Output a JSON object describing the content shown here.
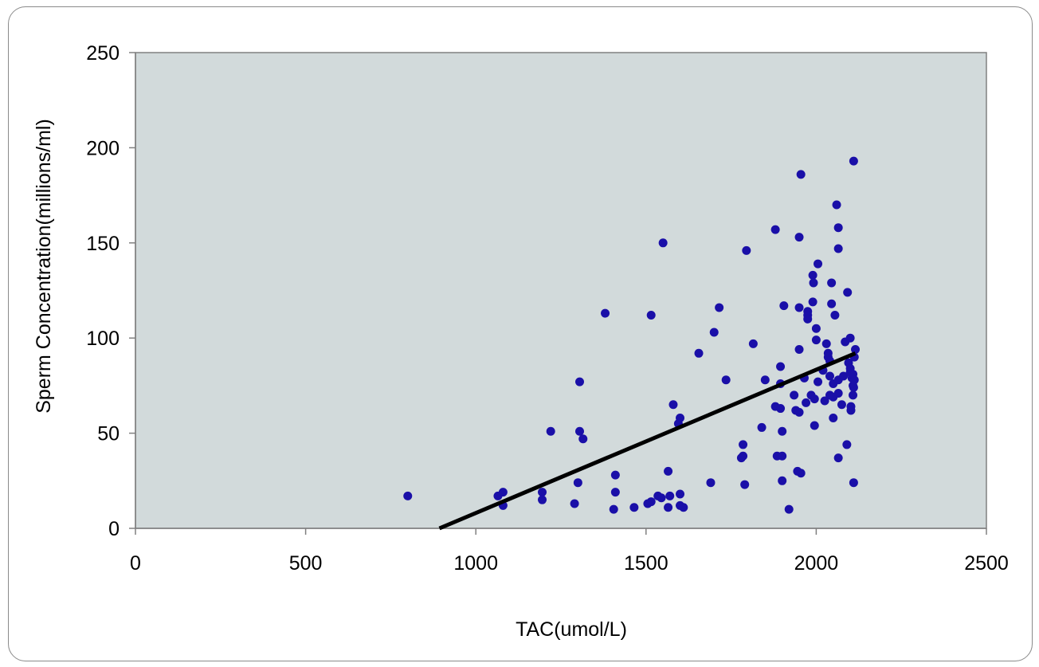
{
  "chart_data": {
    "type": "scatter",
    "title": "",
    "xlabel": "TAC(umol/L)",
    "ylabel": "Sperm Concentration(millions/ml)",
    "xlim": [
      0,
      2500
    ],
    "ylim": [
      0,
      250
    ],
    "x_ticks": [
      "0",
      "500",
      "1000",
      "1500",
      "2000",
      "2500"
    ],
    "y_ticks": [
      "0",
      "50",
      "100",
      "150",
      "200",
      "250"
    ],
    "x_tick_values": [
      0,
      500,
      1000,
      1500,
      2000,
      2500
    ],
    "y_tick_values": [
      0,
      50,
      100,
      150,
      200,
      250
    ],
    "grid": false,
    "plot_background": "#d2dadb",
    "point_color": "#1a0fa8",
    "trendline_color": "#000000",
    "points": [
      [
        800,
        17
      ],
      [
        1065,
        17
      ],
      [
        1080,
        19
      ],
      [
        1080,
        12
      ],
      [
        1195,
        19
      ],
      [
        1195,
        15
      ],
      [
        1220,
        51
      ],
      [
        1290,
        13
      ],
      [
        1300,
        24
      ],
      [
        1305,
        77
      ],
      [
        1305,
        51
      ],
      [
        1315,
        47
      ],
      [
        1380,
        113
      ],
      [
        1405,
        10
      ],
      [
        1410,
        28
      ],
      [
        1410,
        19
      ],
      [
        1465,
        11
      ],
      [
        1505,
        13
      ],
      [
        1515,
        14
      ],
      [
        1515,
        112
      ],
      [
        1535,
        17
      ],
      [
        1545,
        16
      ],
      [
        1550,
        150
      ],
      [
        1565,
        30
      ],
      [
        1565,
        11
      ],
      [
        1570,
        17
      ],
      [
        1580,
        65
      ],
      [
        1595,
        55
      ],
      [
        1600,
        58
      ],
      [
        1600,
        18
      ],
      [
        1600,
        12
      ],
      [
        1610,
        11
      ],
      [
        1655,
        92
      ],
      [
        1690,
        24
      ],
      [
        1700,
        103
      ],
      [
        1715,
        116
      ],
      [
        1735,
        78
      ],
      [
        1780,
        37
      ],
      [
        1785,
        38
      ],
      [
        1785,
        44
      ],
      [
        1790,
        23
      ],
      [
        1795,
        146
      ],
      [
        1815,
        97
      ],
      [
        1840,
        53
      ],
      [
        1850,
        78
      ],
      [
        1880,
        157
      ],
      [
        1880,
        64
      ],
      [
        1885,
        38
      ],
      [
        1895,
        85
      ],
      [
        1895,
        76
      ],
      [
        1895,
        63
      ],
      [
        1900,
        51
      ],
      [
        1900,
        38
      ],
      [
        1900,
        25
      ],
      [
        1905,
        117
      ],
      [
        1920,
        10
      ],
      [
        1935,
        70
      ],
      [
        1940,
        62
      ],
      [
        1945,
        30
      ],
      [
        1950,
        153
      ],
      [
        1950,
        116
      ],
      [
        1950,
        94
      ],
      [
        1950,
        61
      ],
      [
        1955,
        29
      ],
      [
        1955,
        186
      ],
      [
        1965,
        79
      ],
      [
        1970,
        66
      ],
      [
        1975,
        114
      ],
      [
        1975,
        112
      ],
      [
        1975,
        110
      ],
      [
        1985,
        70
      ],
      [
        1990,
        119
      ],
      [
        1990,
        133
      ],
      [
        1992,
        129
      ],
      [
        1995,
        68
      ],
      [
        1995,
        54
      ],
      [
        2000,
        105
      ],
      [
        2000,
        99
      ],
      [
        2005,
        139
      ],
      [
        2005,
        77
      ],
      [
        2020,
        83
      ],
      [
        2025,
        67
      ],
      [
        2030,
        97
      ],
      [
        2035,
        92
      ],
      [
        2035,
        90
      ],
      [
        2040,
        80
      ],
      [
        2040,
        70
      ],
      [
        2040,
        88
      ],
      [
        2045,
        129
      ],
      [
        2045,
        118
      ],
      [
        2050,
        76
      ],
      [
        2050,
        69
      ],
      [
        2050,
        58
      ],
      [
        2055,
        112
      ],
      [
        2060,
        170
      ],
      [
        2065,
        158
      ],
      [
        2065,
        147
      ],
      [
        2065,
        78
      ],
      [
        2065,
        71
      ],
      [
        2065,
        37
      ],
      [
        2075,
        65
      ],
      [
        2080,
        80
      ],
      [
        2085,
        98
      ],
      [
        2090,
        44
      ],
      [
        2092,
        124
      ],
      [
        2095,
        87
      ],
      [
        2100,
        100
      ],
      [
        2100,
        84
      ],
      [
        2100,
        82
      ],
      [
        2102,
        64
      ],
      [
        2102,
        62
      ],
      [
        2105,
        79
      ],
      [
        2108,
        75
      ],
      [
        2108,
        81
      ],
      [
        2108,
        70
      ],
      [
        2110,
        74
      ],
      [
        2110,
        24
      ],
      [
        2110,
        193
      ],
      [
        2112,
        78
      ],
      [
        2112,
        90
      ],
      [
        2115,
        94
      ]
    ],
    "trendline": {
      "x": [
        893,
        2115
      ],
      "y": [
        0,
        92
      ]
    }
  }
}
